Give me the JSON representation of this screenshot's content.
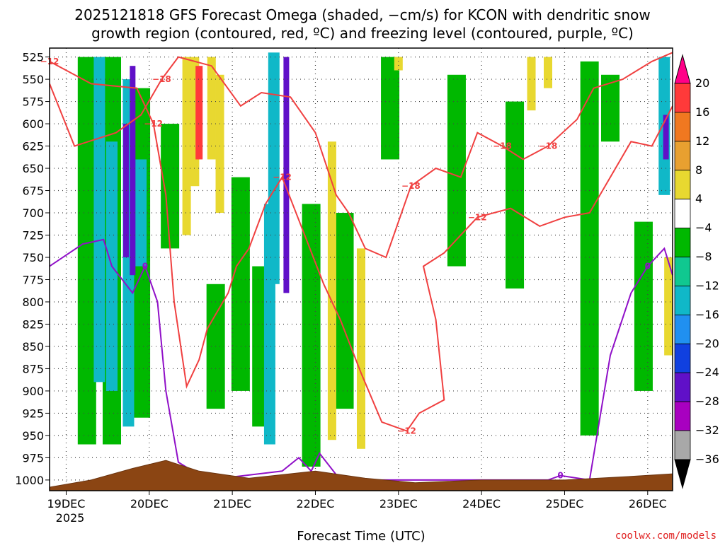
{
  "chart_data": {
    "type": "time-height-cross-section",
    "title_line1": "2025121818 GFS Forecast Omega (shaded, −cm/s) for KCON with dendritic snow",
    "title_line2": "growth region (contoured, red, ºC) and freezing level (contoured, purple, ºC)",
    "xlabel": "Forecast Time (UTC)",
    "credit": "coolwx.com/models",
    "y_axis": {
      "unit": "hPa",
      "range": [
        1012,
        515
      ],
      "ticks": [
        "525",
        "550",
        "575",
        "600",
        "625",
        "650",
        "675",
        "700",
        "725",
        "750",
        "775",
        "800",
        "825",
        "850",
        "875",
        "900",
        "925",
        "950",
        "975",
        "1000"
      ]
    },
    "x_axis": {
      "range_days_from_19dec00z": [
        -0.2,
        7.3
      ],
      "ticks": [
        "19DEC",
        "20DEC",
        "21DEC",
        "22DEC",
        "23DEC",
        "24DEC",
        "25DEC",
        "26DEC"
      ],
      "year_label": "2025"
    },
    "colorbar": {
      "labels": [
        "20",
        "16",
        "12",
        "8",
        "4",
        "-4",
        "-8",
        "-12",
        "-16",
        "-20",
        "-24",
        "-28",
        "-32",
        "-36"
      ],
      "colors": [
        "#ff0088",
        "#ff3a3a",
        "#f07820",
        "#e8a030",
        "#e8d830",
        "#ffffff",
        "#00b800",
        "#10c890",
        "#10b8c8",
        "#2090f0",
        "#1040e0",
        "#6010c8",
        "#a800c0",
        "#a8a8a8",
        "#000000"
      ]
    },
    "series": [
      {
        "name": "omega_ascent_green_columns",
        "unit": "cm/s",
        "level": "-4 to -8",
        "points": [
          [
            0.25,
            525,
            960
          ],
          [
            0.55,
            525,
            960
          ],
          [
            0.9,
            560,
            930
          ],
          [
            1.25,
            600,
            740
          ],
          [
            1.8,
            780,
            920
          ],
          [
            2.1,
            660,
            900
          ],
          [
            2.35,
            760,
            940
          ],
          [
            2.95,
            690,
            985
          ],
          [
            3.35,
            700,
            920
          ],
          [
            3.9,
            525,
            640
          ],
          [
            4.7,
            545,
            760
          ],
          [
            5.4,
            575,
            785
          ],
          [
            6.3,
            530,
            950
          ],
          [
            6.55,
            545,
            620
          ],
          [
            6.95,
            710,
            900
          ]
        ]
      },
      {
        "name": "omega_ascent_cyan_blue",
        "unit": "cm/s",
        "level": "-12 to -20",
        "points": [
          [
            0.4,
            525,
            890
          ],
          [
            0.55,
            620,
            900
          ],
          [
            0.75,
            550,
            940
          ],
          [
            0.9,
            640,
            760
          ],
          [
            2.45,
            690,
            960
          ],
          [
            2.5,
            520,
            780
          ],
          [
            7.2,
            525,
            680
          ]
        ]
      },
      {
        "name": "omega_ascent_purple_black",
        "unit": "cm/s",
        "level": "-24 to -36",
        "points": [
          [
            0.72,
            600,
            750
          ],
          [
            0.8,
            535,
            770
          ],
          [
            2.65,
            525,
            790
          ],
          [
            7.22,
            590,
            640
          ]
        ]
      },
      {
        "name": "omega_descent_yellow_orange",
        "unit": "cm/s",
        "level": "4 to 16",
        "points": [
          [
            1.45,
            525,
            725
          ],
          [
            1.55,
            525,
            670
          ],
          [
            1.75,
            525,
            640
          ],
          [
            1.85,
            545,
            700
          ],
          [
            3.2,
            620,
            955
          ],
          [
            3.55,
            740,
            965
          ],
          [
            4.0,
            525,
            540
          ],
          [
            5.6,
            525,
            585
          ],
          [
            5.8,
            525,
            560
          ],
          [
            7.25,
            750,
            860
          ]
        ]
      },
      {
        "name": "omega_descent_red_pink",
        "unit": "cm/s",
        "level": "20",
        "points": [
          [
            1.6,
            535,
            640
          ]
        ]
      },
      {
        "name": "dendritic_isotherm_-12C",
        "unit": "ºC",
        "value": -12,
        "points": [
          [
            -0.2,
            530
          ],
          [
            0.3,
            555
          ],
          [
            0.85,
            560
          ],
          [
            1.05,
            600
          ],
          [
            1.2,
            680
          ],
          [
            1.3,
            800
          ],
          [
            1.45,
            895
          ],
          [
            1.6,
            865
          ],
          [
            1.7,
            830
          ],
          [
            1.95,
            790
          ],
          [
            2.05,
            760
          ],
          [
            2.2,
            740
          ],
          [
            2.4,
            690
          ],
          [
            2.6,
            660
          ],
          [
            2.85,
            720
          ],
          [
            3.1,
            780
          ],
          [
            3.3,
            820
          ],
          [
            3.55,
            880
          ],
          [
            3.8,
            935
          ],
          [
            4.1,
            945
          ],
          [
            4.25,
            925
          ],
          [
            4.55,
            910
          ],
          [
            4.45,
            820
          ],
          [
            4.3,
            760
          ],
          [
            4.55,
            745
          ],
          [
            4.95,
            705
          ],
          [
            5.35,
            695
          ],
          [
            5.7,
            715
          ],
          [
            6.0,
            705
          ],
          [
            6.3,
            700
          ],
          [
            6.8,
            620
          ],
          [
            7.05,
            625
          ],
          [
            7.3,
            580
          ]
        ]
      },
      {
        "name": "dendritic_isotherm_-18C",
        "unit": "ºC",
        "value": -18,
        "points": [
          [
            -0.2,
            555
          ],
          [
            0.1,
            625
          ],
          [
            0.6,
            610
          ],
          [
            0.9,
            590
          ],
          [
            1.15,
            550
          ],
          [
            1.35,
            525
          ],
          [
            1.75,
            535
          ],
          [
            2.1,
            580
          ],
          [
            2.35,
            565
          ],
          [
            2.7,
            570
          ],
          [
            3.0,
            610
          ],
          [
            3.25,
            680
          ],
          [
            3.4,
            700
          ],
          [
            3.6,
            740
          ],
          [
            3.85,
            750
          ],
          [
            4.15,
            670
          ],
          [
            4.45,
            650
          ],
          [
            4.75,
            660
          ],
          [
            4.95,
            610
          ],
          [
            5.25,
            625
          ],
          [
            5.5,
            640
          ],
          [
            5.8,
            625
          ],
          [
            6.15,
            595
          ],
          [
            6.35,
            560
          ],
          [
            6.7,
            550
          ],
          [
            7.05,
            530
          ],
          [
            7.3,
            520
          ]
        ]
      },
      {
        "name": "freezing_level_0C",
        "unit": "ºC",
        "value": 0,
        "points": [
          [
            -0.2,
            760
          ],
          [
            0.2,
            735
          ],
          [
            0.45,
            730
          ],
          [
            0.55,
            760
          ],
          [
            0.8,
            790
          ],
          [
            0.95,
            760
          ],
          [
            1.1,
            800
          ],
          [
            1.2,
            900
          ],
          [
            1.35,
            980
          ],
          [
            1.7,
            1000
          ],
          [
            2.6,
            990
          ],
          [
            2.8,
            975
          ],
          [
            2.95,
            990
          ],
          [
            3.05,
            970
          ],
          [
            3.3,
            1000
          ],
          [
            5.8,
            1000
          ],
          [
            5.95,
            995
          ],
          [
            6.3,
            1000
          ],
          [
            6.55,
            860
          ],
          [
            6.8,
            790
          ],
          [
            7.0,
            760
          ],
          [
            7.2,
            740
          ],
          [
            7.3,
            770
          ]
        ]
      },
      {
        "name": "terrain_surface",
        "unit": "hPa",
        "points": [
          [
            -0.2,
            1008
          ],
          [
            0.3,
            1000
          ],
          [
            0.8,
            987
          ],
          [
            1.2,
            978
          ],
          [
            1.6,
            990
          ],
          [
            2.2,
            998
          ],
          [
            3.0,
            990
          ],
          [
            3.6,
            998
          ],
          [
            4.2,
            1003
          ],
          [
            5.0,
            1000
          ],
          [
            6.0,
            1000
          ],
          [
            6.8,
            996
          ],
          [
            7.3,
            993
          ]
        ]
      }
    ]
  }
}
